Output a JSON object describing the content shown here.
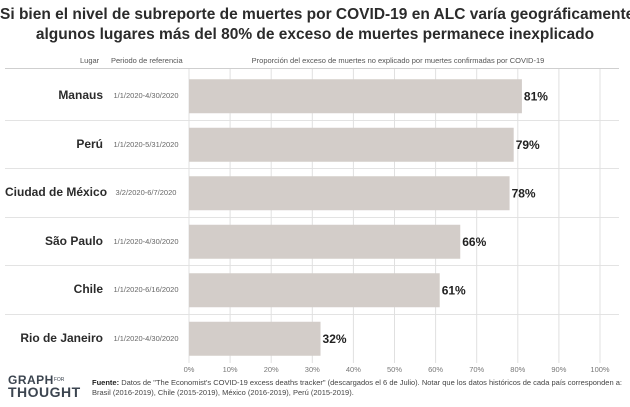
{
  "title_line1": "Si bien el nivel de subreporte de muertes por COVID-19 en ALC varía geográficamente, en",
  "title_line2": "algunos lugares más del 80% de exceso de muertes permanece inexplicado",
  "header": {
    "lugar": "Lugar",
    "periodo": "Periodo de referencia",
    "axis": "Proporción del exceso de muertes no explicado por muertes confirmadas por COVID-19"
  },
  "footer": {
    "source_label": "Fuente:",
    "source_text": "Datos de \"The Economist's COVID-19 excess deaths tracker\" (descargados el 6 de Julio). Notar que los datos históricos de cada país corresponden a: Brasil (2016-2019), Chile (2015-2019), México (2016-2019), Perú (2015-2019).",
    "logo_line1": "GRAPH",
    "logo_for": "FOR",
    "logo_line2": "THOUGHT"
  },
  "colors": {
    "bar": "#d3cdc9",
    "grid": "#e0e0e0"
  },
  "chart_data": {
    "type": "bar",
    "orientation": "horizontal",
    "categories": [
      "Manaus",
      "Perú",
      "Ciudad de México",
      "São Paulo",
      "Chile",
      "Rio de Janeiro"
    ],
    "periods": [
      "1/1/2020-4/30/2020",
      "1/1/2020-5/31/2020",
      "3/2/2020-6/7/2020",
      "1/1/2020-4/30/2020",
      "1/1/2020-6/16/2020",
      "1/1/2020-4/30/2020"
    ],
    "values": [
      81,
      79,
      78,
      66,
      61,
      32
    ],
    "value_labels": [
      "81%",
      "79%",
      "78%",
      "66%",
      "61%",
      "32%"
    ],
    "xlim": [
      0,
      100
    ],
    "xticks": [
      0,
      10,
      20,
      30,
      40,
      50,
      60,
      70,
      80,
      90,
      100
    ],
    "xtick_labels": [
      "0%",
      "10%",
      "20%",
      "30%",
      "40%",
      "50%",
      "60%",
      "70%",
      "80%",
      "90%",
      "100%"
    ],
    "grid": true
  }
}
